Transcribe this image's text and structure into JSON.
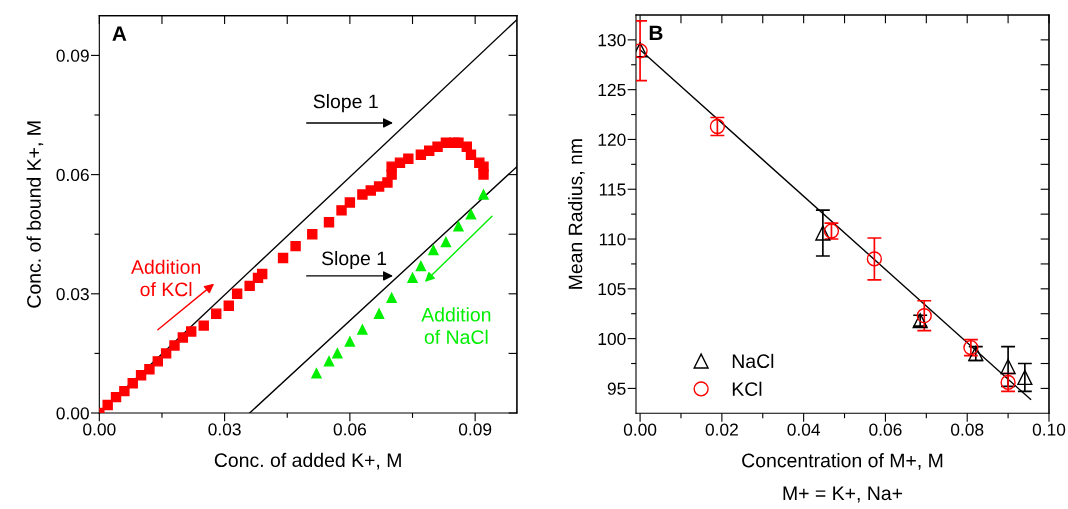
{
  "chart_data": [
    {
      "type": "scatter",
      "title": "A",
      "xlabel": "Conc. of added K+, M",
      "ylabel": "Conc. of bound K+, M",
      "xlim": [
        0,
        0.1
      ],
      "ylim": [
        0,
        0.1
      ],
      "xticks": [
        {
          "value": 0,
          "label": "0.00"
        },
        {
          "value": 0.015,
          "label": null
        },
        {
          "value": 0.03,
          "label": "0.03"
        },
        {
          "value": 0.045,
          "label": null
        },
        {
          "value": 0.06,
          "label": "0.06"
        },
        {
          "value": 0.075,
          "label": null
        },
        {
          "value": 0.09,
          "label": "0.09"
        }
      ],
      "yticks": [
        {
          "value": 0,
          "label": "0.00"
        },
        {
          "value": 0.015,
          "label": null
        },
        {
          "value": 0.03,
          "label": "0.03"
        },
        {
          "value": 0.045,
          "label": null
        },
        {
          "value": 0.06,
          "label": "0.06"
        },
        {
          "value": 0.075,
          "label": null
        },
        {
          "value": 0.09,
          "label": "0.09"
        }
      ],
      "grid": false,
      "legend": false,
      "series": [
        {
          "color": "#ff0000",
          "marker": "square",
          "x": [
            0.0,
            0.002,
            0.004,
            0.006,
            0.008,
            0.01,
            0.012,
            0.014,
            0.016,
            0.018,
            0.02,
            0.022,
            0.025,
            0.028,
            0.031,
            0.033,
            0.036,
            0.038,
            0.039,
            0.044,
            0.047,
            0.051,
            0.055,
            0.058,
            0.06,
            0.063,
            0.065,
            0.067,
            0.069,
            0.07,
            0.07,
            0.072,
            0.074,
            0.077,
            0.079,
            0.081,
            0.083,
            0.085,
            0.086,
            0.088,
            0.089,
            0.091,
            0.092,
            0.092
          ],
          "values": [
            0.0,
            0.002,
            0.004,
            0.0055,
            0.0075,
            0.0095,
            0.011,
            0.013,
            0.015,
            0.017,
            0.019,
            0.0205,
            0.022,
            0.025,
            0.027,
            0.03,
            0.032,
            0.034,
            0.035,
            0.039,
            0.042,
            0.045,
            0.048,
            0.051,
            0.053,
            0.055,
            0.056,
            0.057,
            0.058,
            0.06,
            0.062,
            0.063,
            0.064,
            0.065,
            0.066,
            0.067,
            0.068,
            0.068,
            0.068,
            0.067,
            0.065,
            0.063,
            0.062,
            0.06
          ]
        },
        {
          "color": "#00ee00",
          "marker": "triangle",
          "x": [
            0.052,
            0.055,
            0.057,
            0.06,
            0.063,
            0.067,
            0.07,
            0.075,
            0.077,
            0.08,
            0.083,
            0.086,
            0.089,
            0.092
          ],
          "values": [
            0.01,
            0.013,
            0.015,
            0.018,
            0.021,
            0.025,
            0.029,
            0.034,
            0.037,
            0.041,
            0.043,
            0.047,
            0.05,
            0.055
          ]
        },
        {
          "type": "line",
          "color": "#000000",
          "marker": "none",
          "x": [
            0,
            0.1
          ],
          "values": [
            0,
            0.099
          ]
        },
        {
          "type": "line",
          "color": "#000000",
          "marker": "none",
          "x": [
            0.036,
            0.1
          ],
          "values": [
            0,
            0.062
          ]
        }
      ],
      "annotations": [
        "Slope 1",
        "Slope 1",
        "Addition\nof KCl",
        "Addition\nof NaCl"
      ]
    },
    {
      "type": "scatter",
      "title": "B",
      "xlabel": "Concentration of M+, M",
      "ylabel": "Mean Radius, nm",
      "xlim": [
        -0.001,
        0.1
      ],
      "ylim": [
        92.5,
        132.5
      ],
      "xticks": [
        {
          "value": 0,
          "label": "0.00"
        },
        {
          "value": 0.01,
          "label": null
        },
        {
          "value": 0.02,
          "label": "0.02"
        },
        {
          "value": 0.03,
          "label": null
        },
        {
          "value": 0.04,
          "label": "0.04"
        },
        {
          "value": 0.05,
          "label": null
        },
        {
          "value": 0.06,
          "label": "0.06"
        },
        {
          "value": 0.07,
          "label": null
        },
        {
          "value": 0.08,
          "label": "0.08"
        },
        {
          "value": 0.09,
          "label": null
        },
        {
          "value": 0.1,
          "label": "0.10"
        }
      ],
      "yticks": [
        {
          "value": 95,
          "label": "95"
        },
        {
          "value": 97.5,
          "label": null
        },
        {
          "value": 100,
          "label": "100"
        },
        {
          "value": 102.5,
          "label": null
        },
        {
          "value": 105,
          "label": "105"
        },
        {
          "value": 107.5,
          "label": null
        },
        {
          "value": 110,
          "label": "110"
        },
        {
          "value": 112.5,
          "label": null
        },
        {
          "value": 115,
          "label": "115"
        },
        {
          "value": 117.5,
          "label": null
        },
        {
          "value": 120,
          "label": "120"
        },
        {
          "value": 122.5,
          "label": null
        },
        {
          "value": 125,
          "label": "125"
        },
        {
          "value": 127.5,
          "label": null
        },
        {
          "value": 130,
          "label": "130"
        }
      ],
      "grid": false,
      "legend": "bottom left",
      "series": [
        {
          "name": "NaCl",
          "color": "#000000",
          "marker": "triangle",
          "x": [
            0,
            0.0447,
            0.0685,
            0.0821,
            0.09,
            0.0941
          ],
          "values": [
            129.0,
            110.6,
            101.8,
            98.5,
            97.2,
            96.1
          ],
          "errors": [
            null,
            2.3,
            0.55,
            0.7,
            2,
            1.4
          ]
        },
        {
          "name": "KCl",
          "color": "#ff0000",
          "marker": "circle",
          "x": [
            0,
            0.0189,
            0.0468,
            0.0573,
            0.0695,
            0.0809,
            0.09
          ],
          "values": [
            128.9,
            121.3,
            110.8,
            108.0,
            102.3,
            99.1,
            95.6
          ],
          "errors": [
            3.0,
            0.9,
            0.8,
            2.1,
            1.5,
            0.8,
            0.9
          ]
        },
        {
          "type": "line",
          "color": "#000000",
          "marker": "none",
          "x": [
            0,
            0.0955
          ],
          "values": [
            129.0,
            93.9
          ]
        }
      ],
      "annotations": [
        "M+ = K+, Na+"
      ]
    }
  ]
}
